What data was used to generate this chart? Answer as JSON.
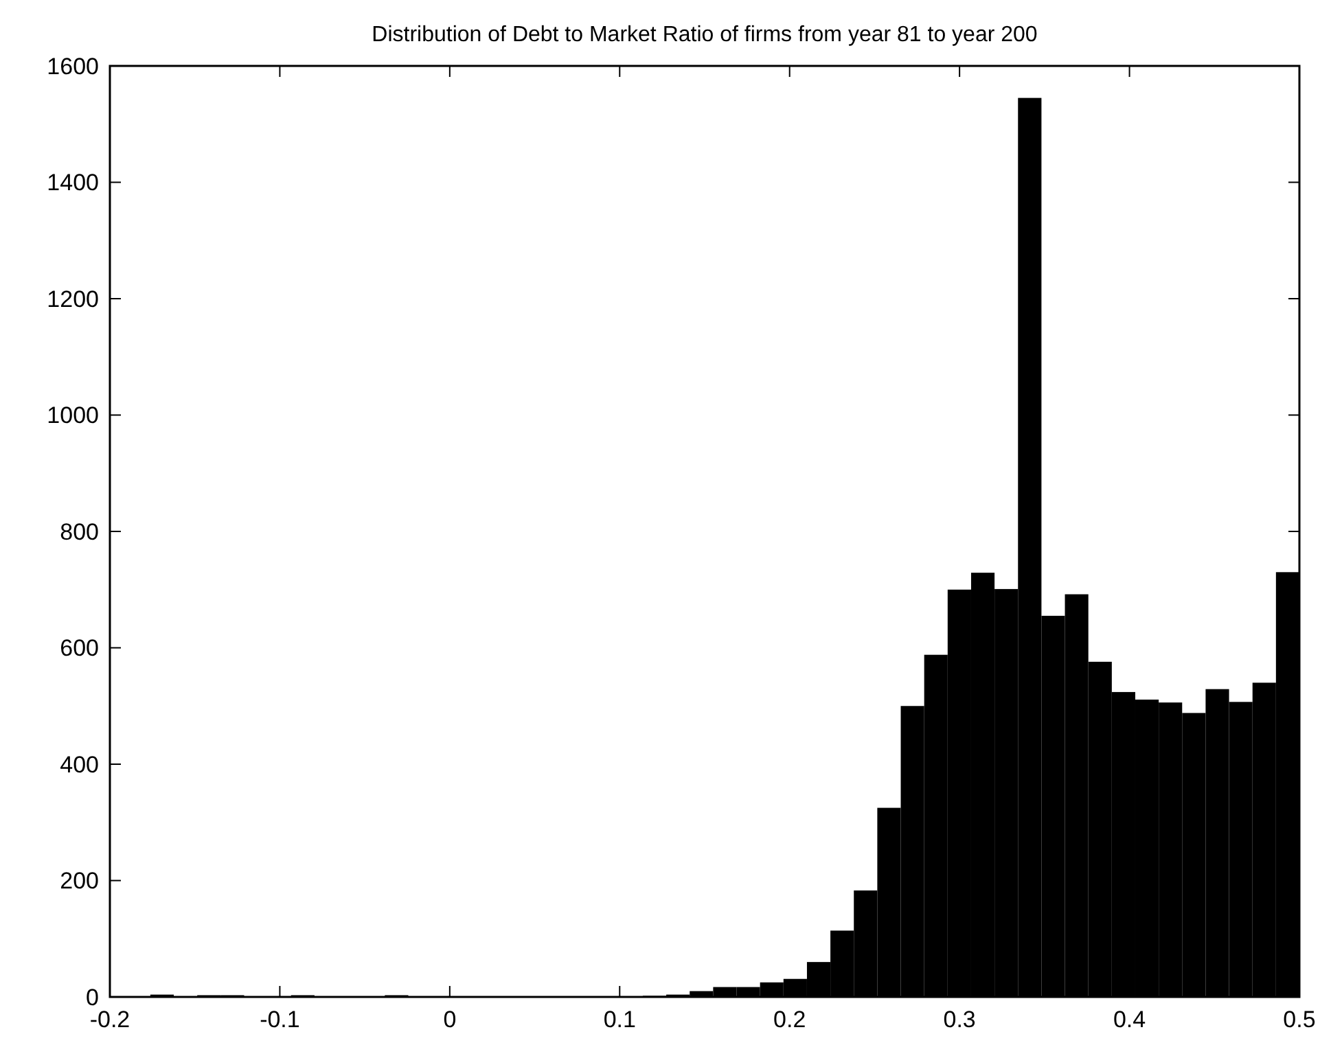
{
  "chart_data": {
    "type": "histogram",
    "title": "Distribution of Debt to Market Ratio of firms from year 81 to year 200",
    "color": "#000000",
    "bins": [
      -0.19,
      -0.1762,
      -0.1624,
      -0.1486,
      -0.1348,
      -0.121,
      -0.1072,
      -0.0934,
      -0.0796,
      -0.0658,
      -0.052,
      -0.0382,
      -0.0244,
      -0.0106,
      0.0032,
      0.017,
      0.0308,
      0.0446,
      0.0584,
      0.0722,
      0.086,
      0.0998,
      0.1136,
      0.1274,
      0.1412,
      0.155,
      0.1688,
      0.1826,
      0.1964,
      0.2102,
      0.224,
      0.2378,
      0.2516,
      0.2654,
      0.2792,
      0.293,
      0.3068,
      0.3206,
      0.3344,
      0.3482,
      0.362,
      0.3758,
      0.3896,
      0.4034,
      0.4172,
      0.431,
      0.4448,
      0.4586,
      0.4724,
      0.4862,
      0.5
    ],
    "values": [
      0,
      4,
      0,
      3,
      3,
      0,
      0,
      3,
      0,
      0,
      0,
      3,
      0,
      0,
      1,
      1,
      1,
      1,
      1,
      1,
      1,
      1,
      2,
      4,
      10,
      17,
      17,
      25,
      31,
      60,
      114,
      183,
      325,
      500,
      588,
      700,
      729,
      701,
      1545,
      655,
      692,
      576,
      524,
      511,
      506,
      488,
      529,
      507,
      540,
      730
    ],
    "xlim": [
      -0.2,
      0.5
    ],
    "xticks": [
      -0.2,
      -0.1,
      0,
      0.1,
      0.2,
      0.3,
      0.4,
      0.5
    ],
    "ylim": [
      0,
      1600
    ],
    "yticks": [
      0,
      200,
      400,
      600,
      800,
      1000,
      1200,
      1400,
      1600
    ],
    "grid": false
  }
}
